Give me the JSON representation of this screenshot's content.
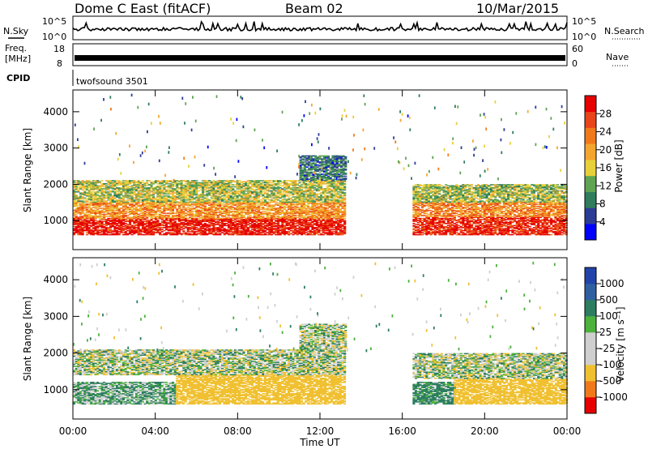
{
  "header": {
    "station": "Dome C East (fitACF)",
    "beam": "Beam 02",
    "date": "10/Mar/2015"
  },
  "top_panels": {
    "nsky": {
      "label": "N.Sky",
      "ticks": [
        "10^5",
        "10^0"
      ],
      "right_label": "N.Search",
      "right_ticks": [
        "10^5",
        "10^0"
      ]
    },
    "freq": {
      "label_top": "Freq.",
      "label_bottom": "[MHz]",
      "ticks": [
        "18",
        "8"
      ],
      "right_label": "Nave",
      "right_ticks": [
        "60",
        "0"
      ]
    },
    "cpid": {
      "label": "CPID",
      "program": "twofsound 3501"
    }
  },
  "colors": {
    "power": [
      "#0000ff",
      "#2c3c96",
      "#2f7d5c",
      "#5fa353",
      "#e8d03a",
      "#f4a530",
      "#f07a1a",
      "#e9441a",
      "#e60000"
    ],
    "velocity": [
      "#2244aa",
      "#2f5fa0",
      "#2d7d60",
      "#4cb23c",
      "#cfcfcf",
      "#cfcfcf",
      "#f0c030",
      "#f07a1a",
      "#e60000"
    ]
  },
  "chart_data": [
    {
      "type": "heatmap",
      "quantity": "power",
      "xlabel": "",
      "ylabel": "Slant Range [km]",
      "ylim": [
        200,
        4600
      ],
      "yticks": [
        "1000",
        "2000",
        "3000",
        "4000"
      ],
      "colorbar_label": "Power [dB]",
      "colorbar_ticks": [
        "4",
        "8",
        "12",
        "16",
        "20",
        "24",
        "28"
      ],
      "colorbar_range": [
        0,
        30
      ],
      "x_ticks": [
        "00:00",
        "04:00",
        "08:00",
        "12:00",
        "16:00",
        "20:00",
        "00:00"
      ],
      "regions": [
        {
          "t0": 0.0,
          "t1": 13.2,
          "r0": 600,
          "r1": 1050,
          "v": 28
        },
        {
          "t0": 0.0,
          "t1": 13.2,
          "r0": 1050,
          "r1": 1500,
          "v": 20
        },
        {
          "t0": 0.0,
          "t1": 13.2,
          "r0": 1500,
          "r1": 2100,
          "v": 14
        },
        {
          "t0": 11.0,
          "t1": 13.2,
          "r0": 2100,
          "r1": 2800,
          "v": 8
        },
        {
          "t0": 16.5,
          "t1": 24.0,
          "r0": 600,
          "r1": 1100,
          "v": 27
        },
        {
          "t0": 16.5,
          "t1": 24.0,
          "r0": 1100,
          "r1": 1500,
          "v": 21
        },
        {
          "t0": 16.5,
          "t1": 24.0,
          "r0": 1500,
          "r1": 2000,
          "v": 13
        }
      ]
    },
    {
      "type": "heatmap",
      "quantity": "velocity",
      "xlabel": "Time UT",
      "ylabel": "Slant Range [km]",
      "ylim": [
        200,
        4600
      ],
      "yticks": [
        "1000",
        "2000",
        "3000",
        "4000"
      ],
      "colorbar_label": "Velocity [m s⁻¹]",
      "colorbar_ticks": [
        "1000",
        "500",
        "100",
        "25",
        "-25",
        "-100",
        "-500",
        "-1000"
      ],
      "x_ticks": [
        "00:00",
        "04:00",
        "08:00",
        "12:00",
        "16:00",
        "20:00",
        "00:00"
      ],
      "regions": [
        {
          "t0": 0.0,
          "t1": 5.0,
          "r0": 600,
          "r1": 1200,
          "v": 100
        },
        {
          "t0": 5.0,
          "t1": 13.2,
          "r0": 600,
          "r1": 1400,
          "v": -300
        },
        {
          "t0": 0.0,
          "t1": 13.2,
          "r0": 1400,
          "r1": 2100,
          "v": 0
        },
        {
          "t0": 11.0,
          "t1": 13.2,
          "r0": 2100,
          "r1": 2800,
          "v": 0
        },
        {
          "t0": 16.5,
          "t1": 18.5,
          "r0": 600,
          "r1": 1200,
          "v": 200
        },
        {
          "t0": 18.5,
          "t1": 24.0,
          "r0": 600,
          "r1": 1300,
          "v": -300
        },
        {
          "t0": 16.5,
          "t1": 24.0,
          "r0": 1300,
          "r1": 2000,
          "v": 0
        }
      ]
    }
  ]
}
